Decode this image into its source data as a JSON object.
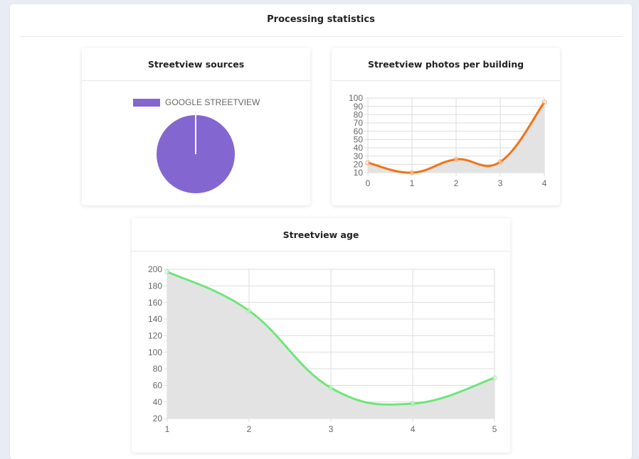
{
  "page": {
    "title": "Processing statistics"
  },
  "colors": {
    "pie": "#8466d1",
    "photos_line": "#f07414",
    "age_line": "#6ee67a",
    "area_fill": "#e3e3e3",
    "grid": "#dddddd"
  },
  "chart_data": [
    {
      "type": "pie",
      "title": "Streetview sources",
      "legend_position": "top",
      "labels": [
        "GOOGLE STREETVIEW"
      ],
      "values": [
        100
      ],
      "color": "#8466d1"
    },
    {
      "type": "line",
      "title": "Streetview photos per building",
      "x": [
        "0",
        "1",
        "2",
        "3",
        "4"
      ],
      "series": [
        {
          "values": [
            22,
            10,
            26,
            23,
            95
          ],
          "color": "#f07414",
          "fill": "area"
        }
      ],
      "ylim": [
        10,
        100
      ],
      "yticks": [
        "100",
        "90",
        "80",
        "70",
        "60",
        "50",
        "40",
        "30",
        "20",
        "10"
      ],
      "grid": true
    },
    {
      "type": "line",
      "title": "Streetview age",
      "x": [
        "1",
        "2",
        "3",
        "4",
        "5"
      ],
      "series": [
        {
          "values": [
            197,
            150,
            57,
            38,
            69
          ],
          "color": "#6ee67a",
          "fill": "area"
        }
      ],
      "ylim": [
        20,
        200
      ],
      "yticks": [
        "200",
        "180",
        "160",
        "140",
        "120",
        "100",
        "80",
        "60",
        "40",
        "20"
      ],
      "grid": true
    }
  ]
}
